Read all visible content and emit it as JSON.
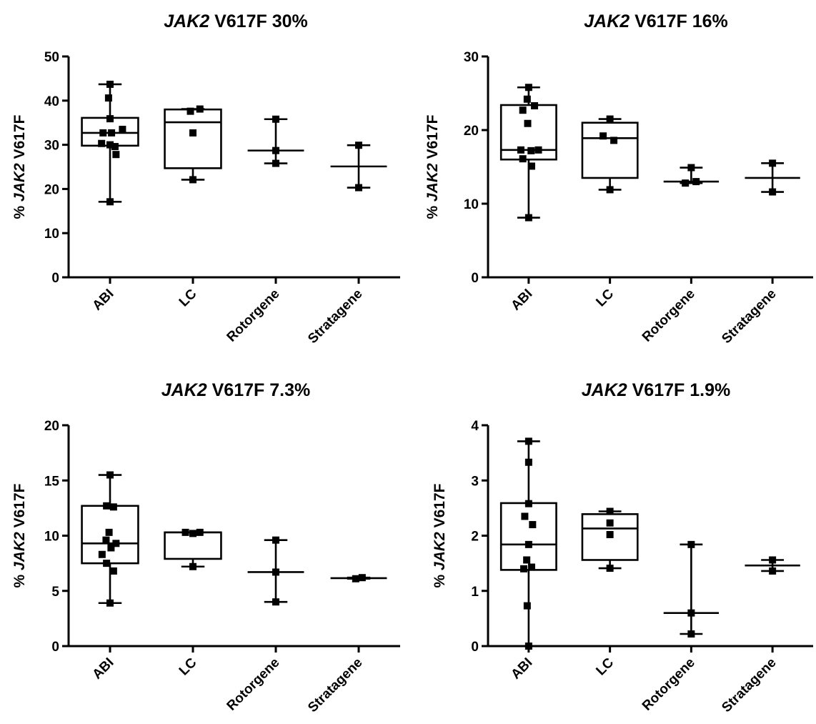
{
  "chart_data": [
    {
      "type": "box",
      "title_gene": "JAK2",
      "title_rest": " V617F 30%",
      "ylabel_prefix": "% ",
      "ylabel_gene": "JAK2",
      "ylabel_rest": " V617F",
      "ylim": [
        0,
        50
      ],
      "yticks": [
        0,
        10,
        20,
        30,
        40,
        50
      ],
      "categories": [
        "ABI",
        "LC",
        "Rotorgene",
        "Stratagene"
      ],
      "groups": [
        {
          "name": "ABI",
          "min": 17.1,
          "q1": 29.8,
          "median": 32.7,
          "q3": 36.1,
          "max": 43.7,
          "box": true,
          "points": [
            [
              0,
              43.7
            ],
            [
              -0.03,
              40.6
            ],
            [
              0,
              35.9
            ],
            [
              -0.14,
              32.7
            ],
            [
              0.03,
              32.7
            ],
            [
              0.25,
              33.5
            ],
            [
              -0.17,
              30.3
            ],
            [
              0,
              30.0
            ],
            [
              0.1,
              29.6
            ],
            [
              0.12,
              27.8
            ],
            [
              0,
              17.1
            ]
          ]
        },
        {
          "name": "LC",
          "min": 22.1,
          "q1": 24.7,
          "median": 35.1,
          "q3": 38.0,
          "max": 38.1,
          "box": true,
          "points": [
            [
              -0.05,
              37.6
            ],
            [
              0.14,
              38.1
            ],
            [
              0,
              32.7
            ],
            [
              0,
              22.1
            ]
          ]
        },
        {
          "name": "Rotorgene",
          "min": 25.8,
          "median": 28.7,
          "max": 35.8,
          "box": false,
          "points": [
            [
              0,
              35.8
            ],
            [
              0,
              28.7
            ],
            [
              0,
              25.8
            ]
          ]
        },
        {
          "name": "Stratagene",
          "min": 20.3,
          "median": 25.1,
          "max": 29.9,
          "box": false,
          "points": [
            [
              0,
              29.9
            ],
            [
              0,
              20.3
            ]
          ]
        }
      ]
    },
    {
      "type": "box",
      "title_gene": "JAK2",
      "title_rest": " V617F 16%",
      "ylabel_prefix": "% ",
      "ylabel_gene": "JAK2",
      "ylabel_rest": " V617F",
      "ylim": [
        0,
        30
      ],
      "yticks": [
        0,
        10,
        20,
        30
      ],
      "categories": [
        "ABI",
        "LC",
        "Rotorgene",
        "Stratagene"
      ],
      "groups": [
        {
          "name": "ABI",
          "min": 8.1,
          "q1": 16.0,
          "median": 17.3,
          "q3": 23.4,
          "max": 25.8,
          "box": true,
          "points": [
            [
              0,
              25.8
            ],
            [
              -0.03,
              24.2
            ],
            [
              -0.12,
              22.7
            ],
            [
              0.12,
              23.3
            ],
            [
              -0.02,
              20.9
            ],
            [
              -0.16,
              17.3
            ],
            [
              0.05,
              17.2
            ],
            [
              0.2,
              17.3
            ],
            [
              -0.12,
              16.1
            ],
            [
              0.06,
              15.1
            ],
            [
              0,
              8.1
            ]
          ]
        },
        {
          "name": "LC",
          "min": 11.9,
          "q1": 13.5,
          "median": 18.9,
          "q3": 21.0,
          "max": 21.5,
          "box": true,
          "points": [
            [
              0,
              21.5
            ],
            [
              -0.14,
              19.2
            ],
            [
              0.08,
              18.6
            ],
            [
              0,
              11.9
            ]
          ]
        },
        {
          "name": "Rotorgene",
          "min": 12.8,
          "median": 13.0,
          "max": 14.9,
          "box": false,
          "points": [
            [
              0,
              14.9
            ],
            [
              -0.12,
              12.8
            ],
            [
              0.1,
              13.0
            ]
          ]
        },
        {
          "name": "Stratagene",
          "min": 11.6,
          "median": 13.5,
          "max": 15.5,
          "box": false,
          "points": [
            [
              0,
              15.5
            ],
            [
              0,
              11.6
            ]
          ]
        }
      ]
    },
    {
      "type": "box",
      "title_gene": "JAK2",
      "title_rest": " V617F 7.3%",
      "ylabel_prefix": "% ",
      "ylabel_gene": "JAK2",
      "ylabel_rest": " V617F",
      "ylim": [
        0,
        20
      ],
      "yticks": [
        0,
        5,
        10,
        15,
        20
      ],
      "categories": [
        "ABI",
        "LC",
        "Rotorgene",
        "Stratagene"
      ],
      "groups": [
        {
          "name": "ABI",
          "min": 3.9,
          "q1": 7.5,
          "median": 9.3,
          "q3": 12.7,
          "max": 15.5,
          "box": true,
          "points": [
            [
              0,
              15.5
            ],
            [
              -0.07,
              12.7
            ],
            [
              0.07,
              12.6
            ],
            [
              -0.02,
              10.3
            ],
            [
              -0.08,
              9.6
            ],
            [
              0.12,
              9.3
            ],
            [
              0.02,
              8.9
            ],
            [
              -0.16,
              8.3
            ],
            [
              -0.07,
              7.5
            ],
            [
              0.07,
              6.8
            ],
            [
              0,
              3.9
            ]
          ]
        },
        {
          "name": "LC",
          "min": 7.2,
          "q1": 7.9,
          "median": 10.3,
          "q3": 10.3,
          "max": 10.3,
          "box": true,
          "points": [
            [
              -0.15,
              10.3
            ],
            [
              0,
              10.2
            ],
            [
              0.14,
              10.3
            ],
            [
              0,
              7.2
            ]
          ]
        },
        {
          "name": "Rotorgene",
          "min": 4.0,
          "median": 6.7,
          "max": 9.6,
          "box": false,
          "points": [
            [
              0,
              9.6
            ],
            [
              0,
              6.7
            ],
            [
              0,
              4.0
            ]
          ]
        },
        {
          "name": "Stratagene",
          "min": 6.1,
          "median": 6.15,
          "max": 6.2,
          "box": false,
          "points": [
            [
              -0.06,
              6.1
            ],
            [
              0.07,
              6.2
            ]
          ]
        }
      ]
    },
    {
      "type": "box",
      "title_gene": "JAK2",
      "title_rest": " V617F 1.9%",
      "ylabel_prefix": "% ",
      "ylabel_gene": "JAK2",
      "ylabel_rest": " V617F",
      "ylim": [
        0,
        4
      ],
      "yticks": [
        0,
        1,
        2,
        3,
        4
      ],
      "categories": [
        "ABI",
        "LC",
        "Rotorgene",
        "Stratagene"
      ],
      "groups": [
        {
          "name": "ABI",
          "min": 0.0,
          "q1": 1.38,
          "median": 1.84,
          "q3": 2.59,
          "max": 3.71,
          "box": true,
          "points": [
            [
              0,
              3.71
            ],
            [
              0,
              3.33
            ],
            [
              0,
              2.58
            ],
            [
              -0.08,
              2.35
            ],
            [
              0.08,
              2.2
            ],
            [
              0,
              1.84
            ],
            [
              -0.04,
              1.56
            ],
            [
              -0.1,
              1.4
            ],
            [
              0.06,
              1.43
            ],
            [
              -0.03,
              0.73
            ],
            [
              0,
              0.0
            ]
          ]
        },
        {
          "name": "LC",
          "min": 1.41,
          "q1": 1.56,
          "median": 2.13,
          "q3": 2.39,
          "max": 2.44,
          "box": true,
          "points": [
            [
              0,
              2.44
            ],
            [
              0,
              2.23
            ],
            [
              0,
              2.02
            ],
            [
              0,
              1.41
            ]
          ]
        },
        {
          "name": "Rotorgene",
          "min": 0.22,
          "median": 0.6,
          "max": 1.84,
          "box": false,
          "points": [
            [
              0,
              1.84
            ],
            [
              0,
              0.6
            ],
            [
              0,
              0.22
            ]
          ]
        },
        {
          "name": "Stratagene",
          "min": 1.36,
          "median": 1.46,
          "max": 1.56,
          "box": false,
          "points": [
            [
              0,
              1.56
            ],
            [
              0,
              1.36
            ]
          ]
        }
      ]
    }
  ]
}
